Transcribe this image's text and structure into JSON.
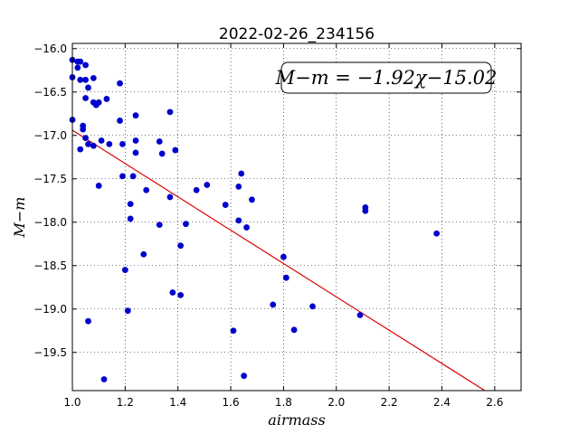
{
  "chart_data": {
    "type": "scatter",
    "title": "2022-02-26_234156",
    "xlabel": "airmass",
    "ylabel": "M−m",
    "xlim": [
      1.0,
      2.7
    ],
    "ylim": [
      -15.94,
      -19.94
    ],
    "y_inverted": true,
    "grid": true,
    "x_ticks": [
      1.0,
      1.2,
      1.4,
      1.6,
      1.8,
      2.0,
      2.2,
      2.4,
      2.6
    ],
    "x_tick_labels": [
      "1.0",
      "1.2",
      "1.4",
      "1.6",
      "1.8",
      "2.0",
      "2.2",
      "2.4",
      "2.6"
    ],
    "y_ticks": [
      -16.0,
      -16.5,
      -17.0,
      -17.5,
      -18.0,
      -18.5,
      -19.0,
      -19.5
    ],
    "y_tick_labels": [
      "−16.0",
      "−16.5",
      "−17.0",
      "−17.5",
      "−18.0",
      "−18.5",
      "−19.0",
      "−19.5"
    ],
    "annotation": "M−m = −1.92χ−15.02",
    "annotation_position": "top-right",
    "marker_color": "#0000cc",
    "fit_color": "#dd0000",
    "fit": {
      "slope": -1.92,
      "intercept": -15.02
    },
    "points": [
      {
        "x": 1.0,
        "y": -16.13
      },
      {
        "x": 1.0,
        "y": -16.33
      },
      {
        "x": 1.0,
        "y": -16.82
      },
      {
        "x": 1.02,
        "y": -16.15
      },
      {
        "x": 1.02,
        "y": -16.22
      },
      {
        "x": 1.03,
        "y": -16.15
      },
      {
        "x": 1.04,
        "y": -16.93
      },
      {
        "x": 1.05,
        "y": -16.19
      },
      {
        "x": 1.03,
        "y": -16.36
      },
      {
        "x": 1.05,
        "y": -16.36
      },
      {
        "x": 1.06,
        "y": -16.45
      },
      {
        "x": 1.05,
        "y": -16.57
      },
      {
        "x": 1.08,
        "y": -16.34
      },
      {
        "x": 1.04,
        "y": -16.89
      },
      {
        "x": 1.05,
        "y": -17.03
      },
      {
        "x": 1.06,
        "y": -17.1
      },
      {
        "x": 1.03,
        "y": -17.16
      },
      {
        "x": 1.08,
        "y": -16.62
      },
      {
        "x": 1.09,
        "y": -16.65
      },
      {
        "x": 1.1,
        "y": -16.62
      },
      {
        "x": 1.13,
        "y": -16.58
      },
      {
        "x": 1.08,
        "y": -17.12
      },
      {
        "x": 1.11,
        "y": -17.06
      },
      {
        "x": 1.14,
        "y": -17.1
      },
      {
        "x": 1.1,
        "y": -17.58
      },
      {
        "x": 1.18,
        "y": -16.4
      },
      {
        "x": 1.18,
        "y": -16.83
      },
      {
        "x": 1.19,
        "y": -17.1
      },
      {
        "x": 1.19,
        "y": -17.47
      },
      {
        "x": 1.24,
        "y": -16.77
      },
      {
        "x": 1.24,
        "y": -17.06
      },
      {
        "x": 1.24,
        "y": -17.2
      },
      {
        "x": 1.23,
        "y": -17.47
      },
      {
        "x": 1.22,
        "y": -17.79
      },
      {
        "x": 1.22,
        "y": -17.96
      },
      {
        "x": 1.28,
        "y": -17.63
      },
      {
        "x": 1.33,
        "y": -17.07
      },
      {
        "x": 1.34,
        "y": -17.21
      },
      {
        "x": 1.37,
        "y": -16.73
      },
      {
        "x": 1.39,
        "y": -17.17
      },
      {
        "x": 1.37,
        "y": -17.71
      },
      {
        "x": 1.33,
        "y": -18.03
      },
      {
        "x": 1.27,
        "y": -18.37
      },
      {
        "x": 1.2,
        "y": -18.55
      },
      {
        "x": 1.21,
        "y": -19.02
      },
      {
        "x": 1.06,
        "y": -19.14
      },
      {
        "x": 1.12,
        "y": -19.81
      },
      {
        "x": 1.38,
        "y": -18.81
      },
      {
        "x": 1.41,
        "y": -18.84
      },
      {
        "x": 1.41,
        "y": -18.27
      },
      {
        "x": 1.43,
        "y": -18.02
      },
      {
        "x": 1.47,
        "y": -17.63
      },
      {
        "x": 1.51,
        "y": -17.57
      },
      {
        "x": 1.58,
        "y": -17.8
      },
      {
        "x": 1.63,
        "y": -17.59
      },
      {
        "x": 1.64,
        "y": -17.44
      },
      {
        "x": 1.63,
        "y": -17.98
      },
      {
        "x": 1.66,
        "y": -18.06
      },
      {
        "x": 1.68,
        "y": -17.74
      },
      {
        "x": 1.61,
        "y": -19.25
      },
      {
        "x": 1.65,
        "y": -19.77
      },
      {
        "x": 1.76,
        "y": -18.95
      },
      {
        "x": 1.8,
        "y": -18.4
      },
      {
        "x": 1.81,
        "y": -18.64
      },
      {
        "x": 1.84,
        "y": -19.24
      },
      {
        "x": 1.91,
        "y": -18.97
      },
      {
        "x": 2.09,
        "y": -19.07
      },
      {
        "x": 2.11,
        "y": -17.83
      },
      {
        "x": 2.11,
        "y": -17.87
      },
      {
        "x": 2.38,
        "y": -18.13
      }
    ]
  }
}
